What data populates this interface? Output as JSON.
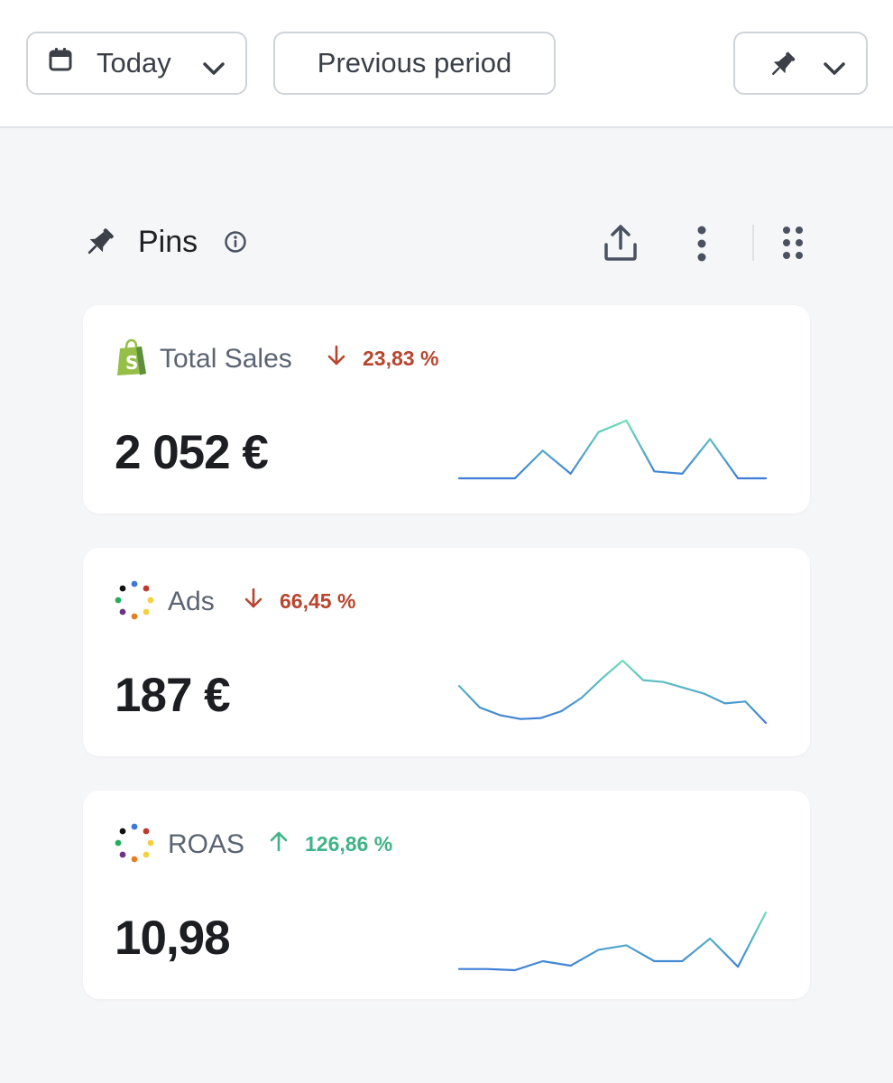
{
  "toolbar": {
    "date_label": "Today",
    "compare_label": "Previous period"
  },
  "section": {
    "title": "Pins"
  },
  "colors": {
    "trend_down": "#b8452e",
    "trend_up": "#3fb389",
    "spark_start": "#3b78d8",
    "spark_end": "#6fe3b5"
  },
  "cards": [
    {
      "source_icon": "shopify-bag-icon",
      "title": "Total Sales",
      "trend_direction": "down",
      "trend_value": "23,83 %",
      "value": "2 052 €",
      "sparkline": [
        2,
        2,
        2,
        14,
        4,
        22,
        27,
        5,
        4,
        19,
        2,
        2
      ]
    },
    {
      "source_icon": "colored-dots-icon",
      "title": "Ads",
      "trend_direction": "down",
      "trend_value": "66,45 %",
      "value": "187 €",
      "sparkline": [
        38,
        16,
        8,
        4,
        5,
        12,
        26,
        46,
        64,
        44,
        42,
        36,
        30,
        20,
        22,
        0
      ]
    },
    {
      "source_icon": "colored-dots-icon",
      "title": "ROAS",
      "trend_direction": "up",
      "trend_value": "126,86 %",
      "value": "10,98",
      "sparkline": [
        3,
        3,
        2,
        10,
        6,
        20,
        24,
        10,
        10,
        30,
        5,
        53
      ]
    }
  ]
}
